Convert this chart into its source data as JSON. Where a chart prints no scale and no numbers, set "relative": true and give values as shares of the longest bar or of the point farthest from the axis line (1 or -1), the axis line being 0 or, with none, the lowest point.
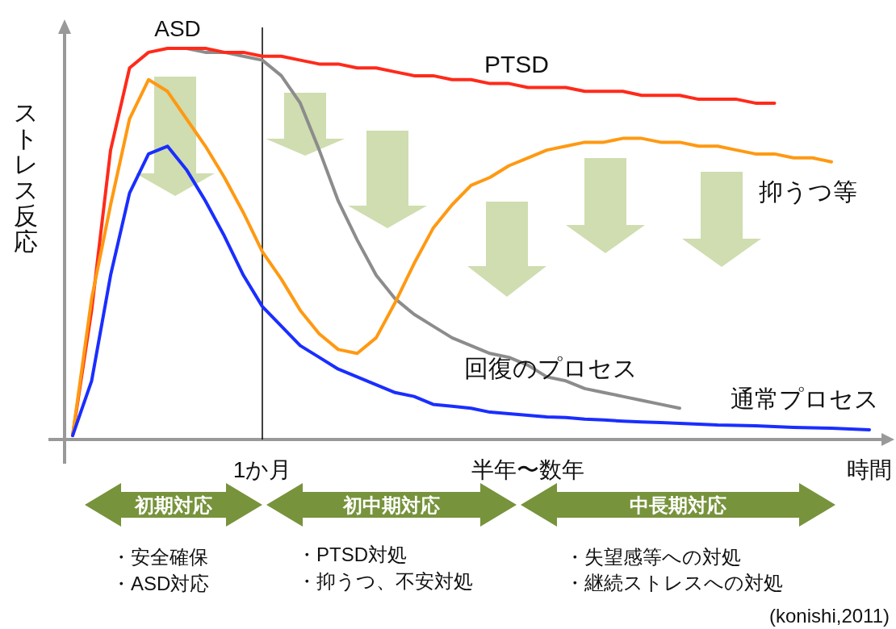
{
  "chart_data": {
    "type": "line",
    "relative": true,
    "ylabel": "ストレス反応",
    "categories": [
      null,
      null,
      null,
      null,
      null,
      null,
      null,
      null,
      null,
      null,
      "1か月",
      null,
      null,
      null,
      null,
      null,
      null,
      null,
      null,
      null,
      null,
      null,
      null,
      null,
      "半年〜数年",
      null,
      null,
      null,
      null,
      null,
      null,
      null,
      null,
      null,
      null,
      null,
      null,
      null,
      null,
      null,
      null,
      null,
      "時間"
    ],
    "series": [
      {
        "name": "PTSD",
        "color": "#ff2a1a",
        "values": [
          0.01,
          0.33,
          0.74,
          0.95,
          0.99,
          1.0,
          1.0,
          1.0,
          0.99,
          0.99,
          0.98,
          0.98,
          0.97,
          0.96,
          0.96,
          0.95,
          0.95,
          0.94,
          0.93,
          0.93,
          0.92,
          0.92,
          0.91,
          0.91,
          0.9,
          0.9,
          0.9,
          0.89,
          0.89,
          0.89,
          0.88,
          0.88,
          0.88,
          0.87,
          0.87,
          0.87,
          0.86,
          0.86,
          null,
          null,
          null,
          null,
          null
        ]
      },
      {
        "name": "回復のプロセス",
        "color": "#8c8c8c",
        "values": [
          null,
          null,
          null,
          null,
          null,
          null,
          1.0,
          0.99,
          0.99,
          0.98,
          0.97,
          0.93,
          0.86,
          0.74,
          0.61,
          0.51,
          0.42,
          0.36,
          0.32,
          0.29,
          0.26,
          0.24,
          0.22,
          0.21,
          0.19,
          0.16,
          0.15,
          0.13,
          0.12,
          0.11,
          0.1,
          0.09,
          0.08,
          null,
          null,
          null,
          null,
          null,
          null,
          null,
          null,
          null,
          null
        ]
      },
      {
        "name": "抑うつ等",
        "color": "#ff9912",
        "values": [
          0.01,
          0.36,
          0.6,
          0.82,
          0.92,
          0.89,
          0.82,
          0.75,
          0.67,
          0.58,
          0.48,
          0.41,
          0.33,
          0.27,
          0.23,
          0.22,
          0.26,
          0.35,
          0.45,
          0.54,
          0.6,
          0.65,
          0.67,
          0.7,
          0.72,
          0.74,
          0.75,
          0.76,
          0.76,
          0.77,
          0.77,
          0.76,
          0.76,
          0.75,
          0.75,
          0.74,
          0.73,
          0.73,
          0.72,
          0.72,
          0.71,
          null,
          null
        ]
      },
      {
        "name": "通常プロセス",
        "color": "#1a2eff",
        "values": [
          0.01,
          0.15,
          0.42,
          0.63,
          0.73,
          0.75,
          0.69,
          0.61,
          0.52,
          0.42,
          0.34,
          0.29,
          0.24,
          0.21,
          0.18,
          0.16,
          0.14,
          0.12,
          0.11,
          0.09,
          0.085,
          0.08,
          0.07,
          0.066,
          0.062,
          0.058,
          0.056,
          0.052,
          0.05,
          0.047,
          0.045,
          0.043,
          0.041,
          0.039,
          0.037,
          0.036,
          0.035,
          0.033,
          0.031,
          0.03,
          0.029,
          0.027,
          0.025
        ]
      }
    ],
    "ref_lines": [
      {
        "axis": "x",
        "value": "1か月",
        "color": "#000000"
      }
    ],
    "annotations": [
      "ASD",
      "初期対応",
      "初中期対応",
      "中長期対応",
      "・安全確保",
      "・ASD対応",
      "・PTSD対処",
      "・抑うつ、不安対処",
      "・失望感等への対処",
      "・継続ストレスへの対処",
      "(konishi,2011)"
    ]
  }
}
